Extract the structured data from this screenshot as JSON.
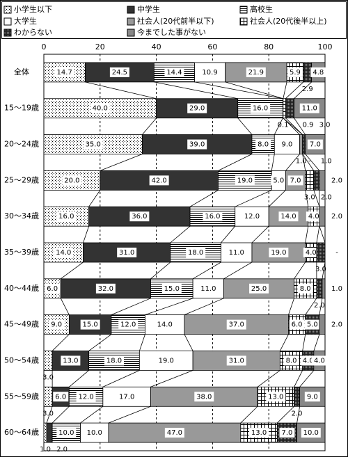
{
  "chart_data": {
    "type": "stacked_bar_h",
    "categories": [
      "全体",
      "15～19歳",
      "20～24歳",
      "25～29歳",
      "30～34歳",
      "35～39歳",
      "40～44歳",
      "45～49歳",
      "50～54歳",
      "55～59歳",
      "60～64歳"
    ],
    "xlim": [
      0,
      100
    ],
    "xticks": [
      0,
      20,
      40,
      60,
      80,
      100
    ],
    "grid": true,
    "series": [
      {
        "name": "小学生以下",
        "color": "#ffffff",
        "pattern": "dots",
        "values": [
          14.7,
          40,
          35,
          20,
          16,
          14,
          6,
          9,
          3,
          3,
          1
        ],
        "value_labels": [
          "14.7",
          "40.0",
          "35.0",
          "20.0",
          "16.0",
          "14.0",
          "6.0",
          "9.0",
          "3.0",
          "3.0",
          "1.0"
        ]
      },
      {
        "name": "中学生",
        "color": "#333333",
        "pattern": "solid",
        "values": [
          24.5,
          29,
          39,
          42,
          36,
          31,
          32,
          15,
          13,
          6,
          2
        ],
        "value_labels": [
          "24.5",
          "29.0",
          "39.0",
          "42.0",
          "36.0",
          "31.0",
          "32.0",
          "15.0",
          "13.0",
          "6.0",
          "2.0"
        ]
      },
      {
        "name": "高校生",
        "color": "#ffffff",
        "pattern": "hlines",
        "values": [
          14.4,
          16,
          8,
          19,
          16,
          18,
          15,
          12,
          18,
          12,
          10
        ],
        "value_labels": [
          "14.4",
          "16.0",
          "8.0",
          "19.0",
          "16.0",
          "18.0",
          "15.0",
          "12.0",
          "18.0",
          "12.0",
          "10.0"
        ]
      },
      {
        "name": "大学生",
        "color": "#ffffff",
        "pattern": "solid",
        "values": [
          10.9,
          0.1,
          9,
          5,
          12,
          11,
          11,
          14,
          19,
          17,
          10
        ],
        "value_labels": [
          "10.9",
          "0.1",
          "9.0",
          "5.0",
          "12.0",
          "11.0",
          "11.0",
          "14.0",
          "19.0",
          "17.0",
          "10.0"
        ]
      },
      {
        "name": "社会人(20代前半以下)",
        "color": "#999999",
        "pattern": "solid",
        "values": [
          21.9,
          0,
          1,
          7,
          14,
          19,
          25,
          37,
          31,
          38,
          47
        ],
        "value_labels": [
          "21.9",
          "-",
          "1.0",
          "7.0",
          "14.0",
          "19.0",
          "25.0",
          "37.0",
          "31.0",
          "38.0",
          "47.0"
        ]
      },
      {
        "name": "社会人(20代後半以上)",
        "color": "#ffffff",
        "pattern": "grid",
        "values": [
          5.9,
          0.9,
          0,
          3,
          4,
          4,
          8,
          6,
          8,
          13,
          13
        ],
        "value_labels": [
          "5.9",
          "0.9",
          "-",
          "3.0",
          "4.0",
          "4.0",
          "8.0",
          "6.0",
          "8.0",
          "13.0",
          "13.0"
        ]
      },
      {
        "name": "わからない",
        "color": "#222222",
        "pattern": "checker",
        "values": [
          2.9,
          3,
          1,
          2,
          0,
          3,
          2,
          5,
          4,
          2,
          7
        ],
        "value_labels": [
          "2.9",
          "3.0",
          "1.0",
          "2.0",
          null,
          "3.0",
          "2.0",
          "5.0",
          "4.0",
          "2.0",
          "7.0"
        ]
      },
      {
        "name": "今までした事がない",
        "color": "#888888",
        "pattern": "solid",
        "values": [
          4.8,
          11,
          7,
          2,
          2,
          0,
          1,
          2,
          4,
          9,
          10
        ],
        "value_labels": [
          "4.8",
          "11.0",
          "7.0",
          "2.0",
          "2.0",
          "-",
          "1.0",
          "2.0",
          "4.0",
          "9.0",
          "10.0"
        ]
      }
    ]
  }
}
